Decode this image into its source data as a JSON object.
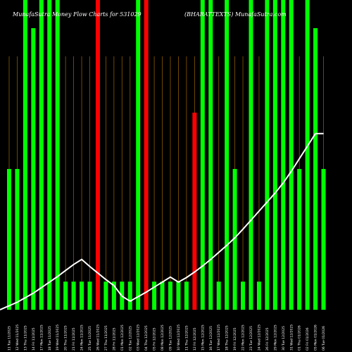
{
  "chart_data": {
    "type": "bar",
    "title": "MunafaSutra Money Flow Charts for 531029",
    "subtitle": "(BHARATTEXTS) MunafaSutra.com",
    "categories": [
      "11 Tue 11/2025",
      "12 Wed 11/2025",
      "13 Thu 11/2025",
      "14 Fri 11/2025",
      "17 Mon 11/2025",
      "18 Tue 11/2025",
      "19 Wed 11/2025",
      "20 Thu 11/2025",
      "21 Fri 11/2025",
      "24 Mon 11/2025",
      "25 Tue 11/2025",
      "26 Wed 11/2025",
      "27 Thu 11/2025",
      "28 Fri 11/2025",
      "01 Mon 12/2025",
      "02 Tue 12/2025",
      "03 Wed 12/2025",
      "04 Thu 12/2025",
      "05 Fri 12/2025",
      "08 Mon 12/2025",
      "09 Tue 12/2025",
      "10 Wed 12/2025",
      "11 Thu 12/2025",
      "12 Fri 12/2025",
      "15 Mon 12/2025",
      "16 Tue 12/2025",
      "17 Wed 12/2025",
      "18 Thu 12/2025",
      "19 Fri 12/2025",
      "22 Mon 12/2025",
      "23 Tue 12/2025",
      "24 Wed 12/2025",
      "26 Fri 12/2025",
      "29 Mon 12/2025",
      "30 Tue 12/2025",
      "31 Wed 12/2025",
      "01 Thu 01/2026",
      "02 Fri 01/2026",
      "05 Mon 01/2026",
      "06 Tue 01/2026"
    ],
    "bar_values": [
      200,
      200,
      440,
      400,
      440,
      440,
      440,
      40,
      40,
      40,
      40,
      440,
      40,
      40,
      40,
      40,
      440,
      440,
      40,
      40,
      40,
      40,
      40,
      280,
      440,
      440,
      40,
      440,
      200,
      40,
      440,
      40,
      440,
      440,
      440,
      440,
      200,
      440,
      400,
      200
    ],
    "bar_colors": [
      "#00ff00",
      "#00ff00",
      "#00ff00",
      "#00ff00",
      "#00ff00",
      "#00ff00",
      "#00ff00",
      "#00ff00",
      "#00ff00",
      "#00ff00",
      "#00ff00",
      "#ff0000",
      "#00ff00",
      "#00ff00",
      "#00ff00",
      "#00ff00",
      "#00ff00",
      "#ff0000",
      "#00ff00",
      "#00ff00",
      "#00ff00",
      "#00ff00",
      "#00ff00",
      "#ff0000",
      "#00ff00",
      "#00ff00",
      "#00ff00",
      "#00ff00",
      "#00ff00",
      "#00ff00",
      "#00ff00",
      "#00ff00",
      "#00ff00",
      "#00ff00",
      "#00ff00",
      "#00ff00",
      "#00ff00",
      "#00ff00",
      "#00ff00",
      "#00ff00"
    ],
    "line_values": [
      8,
      15,
      24,
      33,
      44,
      55,
      66,
      78,
      90,
      100,
      86,
      73,
      60,
      48,
      27,
      17,
      26,
      35,
      45,
      55,
      65,
      55,
      64,
      75,
      87,
      100,
      114,
      128,
      143,
      160,
      178,
      196,
      214,
      232,
      252,
      275,
      300,
      325,
      350,
      350
    ],
    "ylim": [
      0,
      440
    ],
    "grid": true,
    "colors": {
      "background": "#000000",
      "up_bar": "#00ff00",
      "down_bar": "#ff0000",
      "grid": "#8b5a00",
      "line": "#ffffff",
      "text": "#ffffff"
    }
  }
}
